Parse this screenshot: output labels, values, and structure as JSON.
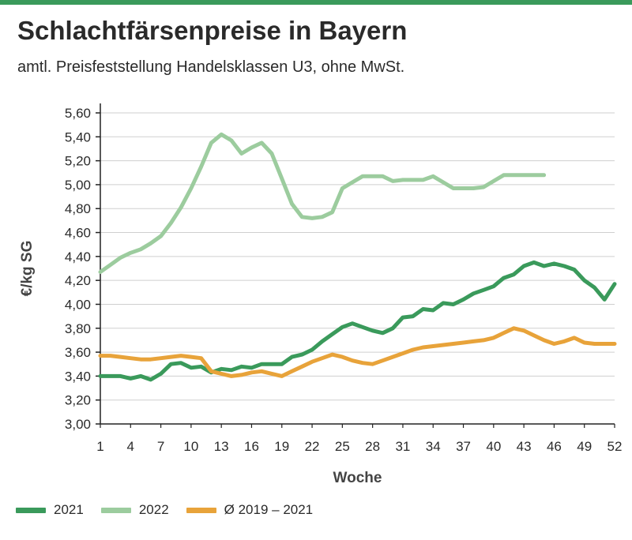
{
  "colors": {
    "brand_bar": "#3a9a5b",
    "series_2021": "#3a9a5b",
    "series_2022": "#9ccc9e",
    "series_avg": "#e8a33a",
    "axis": "#222222",
    "grid": "#cfcfcf"
  },
  "chart_data": {
    "type": "line",
    "title": "Schlachtfärsenpreise in Bayern",
    "subtitle": "amtl. Preisfeststellung Handelsklassen U3, ohne MwSt.",
    "xlabel": "Woche",
    "ylabel": "€/kg SG",
    "xlim": [
      1,
      52
    ],
    "ylim": [
      3.0,
      5.6
    ],
    "x_ticks": [
      1,
      4,
      7,
      10,
      13,
      16,
      19,
      22,
      25,
      28,
      31,
      34,
      37,
      40,
      43,
      46,
      49,
      52
    ],
    "y_ticks": [
      "3,00",
      "3,20",
      "3,40",
      "3,60",
      "3,80",
      "4,00",
      "4,20",
      "4,40",
      "4,60",
      "4,80",
      "5,00",
      "5,20",
      "5,40",
      "5,60"
    ],
    "y_tick_values": [
      3.0,
      3.2,
      3.4,
      3.6,
      3.8,
      4.0,
      4.2,
      4.4,
      4.6,
      4.8,
      5.0,
      5.2,
      5.4,
      5.6
    ],
    "grid": "horizontal",
    "legend_position": "bottom",
    "series": [
      {
        "name": "2022",
        "color_key": "series_2022",
        "x": [
          1,
          2,
          3,
          4,
          5,
          6,
          7,
          8,
          9,
          10,
          11,
          12,
          13,
          14,
          15,
          16,
          17,
          18,
          19,
          20,
          21,
          22,
          23,
          24,
          25,
          26,
          27,
          28,
          29,
          30,
          31,
          32,
          33,
          34,
          35,
          36,
          37,
          38,
          39,
          40,
          41,
          42,
          43,
          44,
          45
        ],
        "values": [
          4.27,
          4.33,
          4.39,
          4.43,
          4.46,
          4.51,
          4.57,
          4.68,
          4.81,
          4.97,
          5.15,
          5.35,
          5.42,
          5.37,
          5.26,
          5.31,
          5.35,
          5.26,
          5.05,
          4.84,
          4.73,
          4.72,
          4.73,
          4.77,
          4.97,
          5.02,
          5.07,
          5.07,
          5.07,
          5.03,
          5.04,
          5.04,
          5.04,
          5.07,
          5.02,
          4.97,
          4.97,
          4.97,
          4.98,
          5.03,
          5.08,
          5.08,
          5.08,
          5.08,
          5.08
        ]
      },
      {
        "name": "2021",
        "color_key": "series_2021",
        "x": [
          1,
          2,
          3,
          4,
          5,
          6,
          7,
          8,
          9,
          10,
          11,
          12,
          13,
          14,
          15,
          16,
          17,
          18,
          19,
          20,
          21,
          22,
          23,
          24,
          25,
          26,
          27,
          28,
          29,
          30,
          31,
          32,
          33,
          34,
          35,
          36,
          37,
          38,
          39,
          40,
          41,
          42,
          43,
          44,
          45,
          46,
          47,
          48,
          49,
          50,
          51,
          52
        ],
        "values": [
          3.4,
          3.4,
          3.4,
          3.38,
          3.4,
          3.37,
          3.42,
          3.5,
          3.51,
          3.47,
          3.48,
          3.43,
          3.46,
          3.45,
          3.48,
          3.47,
          3.5,
          3.5,
          3.5,
          3.56,
          3.58,
          3.62,
          3.69,
          3.75,
          3.81,
          3.84,
          3.81,
          3.78,
          3.76,
          3.8,
          3.89,
          3.9,
          3.96,
          3.95,
          4.01,
          4.0,
          4.04,
          4.09,
          4.12,
          4.15,
          4.22,
          4.25,
          4.32,
          4.35,
          4.32,
          4.34,
          4.32,
          4.29,
          4.2,
          4.14,
          4.04,
          4.17
        ]
      },
      {
        "name": "Ø 2019 – 2021",
        "color_key": "series_avg",
        "x": [
          1,
          2,
          3,
          4,
          5,
          6,
          7,
          8,
          9,
          10,
          11,
          12,
          13,
          14,
          15,
          16,
          17,
          18,
          19,
          20,
          21,
          22,
          23,
          24,
          25,
          26,
          27,
          28,
          29,
          30,
          31,
          32,
          33,
          34,
          35,
          36,
          37,
          38,
          39,
          40,
          41,
          42,
          43,
          44,
          45,
          46,
          47,
          48,
          49,
          50,
          51,
          52
        ],
        "values": [
          3.57,
          3.57,
          3.56,
          3.55,
          3.54,
          3.54,
          3.55,
          3.56,
          3.57,
          3.56,
          3.55,
          3.44,
          3.42,
          3.4,
          3.41,
          3.43,
          3.44,
          3.42,
          3.4,
          3.44,
          3.48,
          3.52,
          3.55,
          3.58,
          3.56,
          3.53,
          3.51,
          3.5,
          3.53,
          3.56,
          3.59,
          3.62,
          3.64,
          3.65,
          3.66,
          3.67,
          3.68,
          3.69,
          3.7,
          3.72,
          3.76,
          3.8,
          3.78,
          3.74,
          3.7,
          3.67,
          3.69,
          3.72,
          3.68,
          3.67,
          3.67,
          3.67
        ]
      }
    ]
  },
  "legend": [
    {
      "label": "2021",
      "color_key": "series_2021"
    },
    {
      "label": "2022",
      "color_key": "series_2022"
    },
    {
      "label": "Ø 2019 – 2021",
      "color_key": "series_avg"
    }
  ]
}
